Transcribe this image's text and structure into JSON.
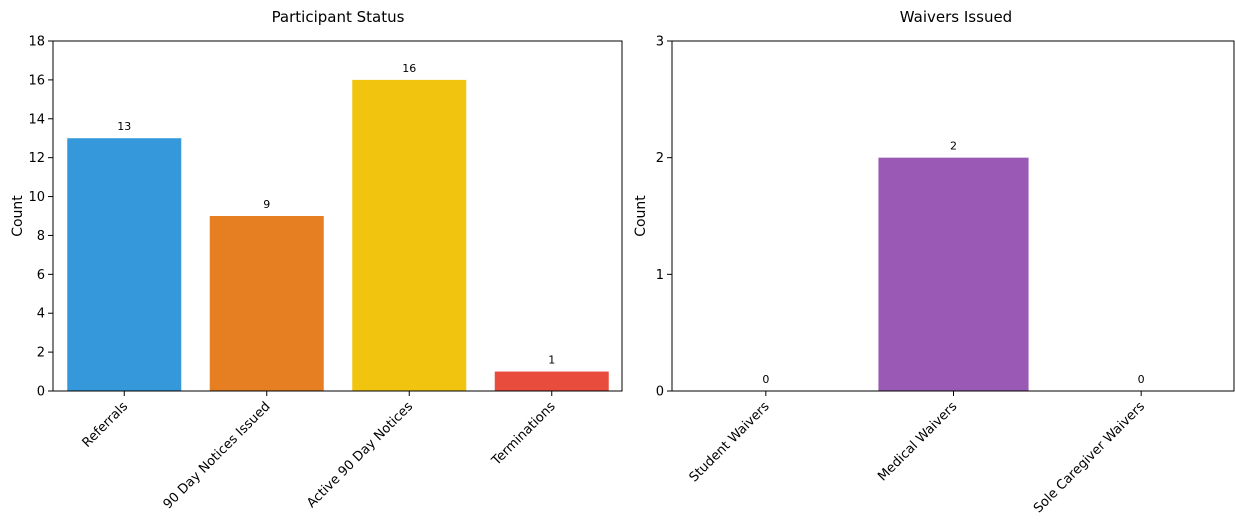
{
  "chart_data": [
    {
      "type": "bar",
      "title": "Participant Status",
      "xlabel": "",
      "ylabel": "Count",
      "categories": [
        "Referrals",
        "90 Day Notices Issued",
        "Active 90 Day Notices",
        "Terminations"
      ],
      "values": [
        13,
        9,
        16,
        1
      ],
      "colors": [
        "#3498db",
        "#e67e22",
        "#f1c40f",
        "#e74c3c"
      ],
      "ylim": [
        0,
        18
      ],
      "yticks": [
        0,
        2,
        4,
        6,
        8,
        10,
        12,
        14,
        16,
        18
      ],
      "grid": false,
      "data_labels": true
    },
    {
      "type": "bar",
      "title": "Waivers Issued",
      "xlabel": "",
      "ylabel": "Count",
      "categories": [
        "Student Waivers",
        "Medical Waivers",
        "Sole Caregiver Waivers"
      ],
      "values": [
        0,
        2,
        0
      ],
      "colors": [
        "#9b59b6",
        "#9b59b6",
        "#9b59b6"
      ],
      "ylim": [
        0,
        3
      ],
      "yticks": [
        0,
        1,
        2,
        3
      ],
      "grid": false,
      "data_labels": true
    }
  ]
}
